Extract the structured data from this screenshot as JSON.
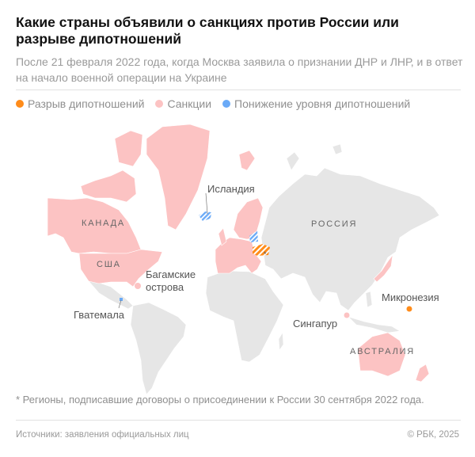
{
  "header": {
    "title": "Какие страны объявили о санкциях против России или разрыве дипотношений",
    "subtitle": "После 21 февраля 2022 года, когда Москва заявила о признании ДНР и ЛНР, и в ответ на начало военной операции на Украине"
  },
  "legend": [
    {
      "label": "Разрыв дипотношений",
      "color": "#ff8c1a"
    },
    {
      "label": "Санкции",
      "color": "#fcc3c3"
    },
    {
      "label": "Понижение уровня дипотношений",
      "color": "#6aaaf7"
    }
  ],
  "colors": {
    "no_action": "#e6e6e6",
    "border": "#ffffff"
  },
  "map": {
    "labels": {
      "canada": "КАНАДА",
      "usa": "США",
      "bahamas_1": "Багамские",
      "bahamas_2": "острова",
      "guatemala": "Гватемала",
      "iceland": "Исландия",
      "russia": "РОССИЯ",
      "micronesia": "Микронезия",
      "singapore": "Сингапур",
      "australia": "АВСТРАЛИЯ",
      "asterisk": "*"
    }
  },
  "footnote": "* Регионы, подписавшие договоры о присоединении к России 30 сентября 2022 года.",
  "footer": {
    "sources": "Источники: заявления официальных лиц",
    "copyright": "© РБК, 2025"
  }
}
